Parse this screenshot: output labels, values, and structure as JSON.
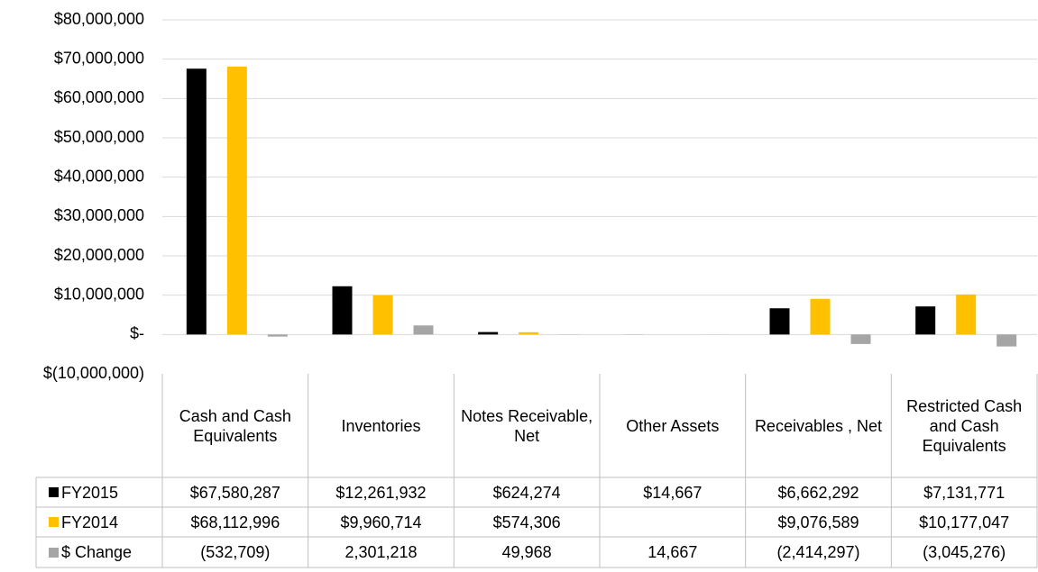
{
  "chart_data": {
    "type": "bar",
    "categories": [
      "Cash and Cash Equivalents",
      "Inventories",
      "Notes Receivable, Net",
      "Other Assets",
      "Receivables , Net",
      "Restricted Cash and Cash Equivalents"
    ],
    "series": [
      {
        "name": "FY2015",
        "color": "#000000",
        "values": [
          67580287,
          12261932,
          624274,
          14667,
          6662292,
          7131771
        ],
        "value_labels": [
          "$67,580,287",
          "$12,261,932",
          "$624,274",
          "$14,667",
          "$6,662,292",
          "$7,131,771"
        ]
      },
      {
        "name": "FY2014",
        "color": "#ffc000",
        "values": [
          68112996,
          9960714,
          574306,
          null,
          9076589,
          10177047
        ],
        "value_labels": [
          "$68,112,996",
          "$9,960,714",
          "$574,306",
          null,
          "$9,076,589",
          "$10,177,047"
        ]
      },
      {
        "name": "$ Change",
        "color": "#a5a5a5",
        "values": [
          -532709,
          2301218,
          49968,
          14667,
          -2414297,
          -3045276
        ],
        "value_labels": [
          "(532,709)",
          "2,301,218",
          "49,968",
          "14,667",
          "(2,414,297)",
          "(3,045,276)"
        ]
      }
    ],
    "ylim": [
      -10000000,
      80000000
    ],
    "yticks": [
      {
        "value": -10000000,
        "label": "$(10,000,000)"
      },
      {
        "value": 0,
        "label": "$-"
      },
      {
        "value": 10000000,
        "label": "$10,000,000"
      },
      {
        "value": 20000000,
        "label": "$20,000,000"
      },
      {
        "value": 30000000,
        "label": "$30,000,000"
      },
      {
        "value": 40000000,
        "label": "$40,000,000"
      },
      {
        "value": 50000000,
        "label": "$50,000,000"
      },
      {
        "value": 60000000,
        "label": "$60,000,000"
      },
      {
        "value": 70000000,
        "label": "$70,000,000"
      },
      {
        "value": 80000000,
        "label": "$80,000,000"
      }
    ],
    "grid": true
  }
}
